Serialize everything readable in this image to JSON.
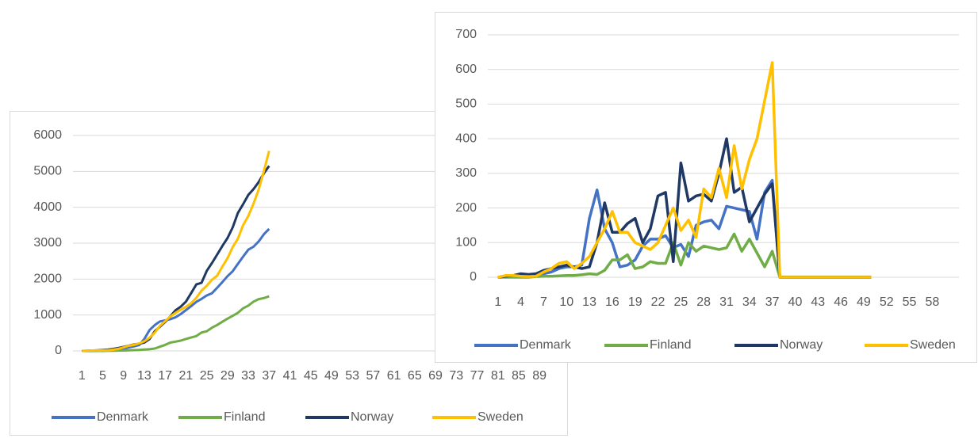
{
  "chart_data": [
    {
      "type": "line",
      "categories": [
        "1",
        null,
        null,
        null,
        "5",
        null,
        null,
        null,
        "9",
        null,
        null,
        null,
        "13",
        null,
        null,
        null,
        "17",
        null,
        null,
        null,
        "21",
        null,
        null,
        null,
        "25",
        null,
        null,
        null,
        "29",
        null,
        null,
        null,
        "33",
        null,
        null,
        null,
        "37",
        null,
        null,
        null,
        "41",
        null,
        null,
        null,
        "45",
        null,
        null,
        null,
        "49",
        null,
        null,
        null,
        "53",
        null,
        null,
        null,
        "57",
        null,
        null,
        null,
        "61",
        null,
        null,
        null,
        "65",
        null,
        null,
        null,
        "69",
        null,
        null,
        null,
        "73",
        null,
        null,
        null,
        "77",
        null,
        null,
        null,
        "81",
        null,
        null,
        null,
        "85",
        null,
        null,
        null,
        "89",
        null
      ],
      "series": [
        {
          "name": "Denmark",
          "color": "#4472c4",
          "values": [
            0,
            2,
            5,
            8,
            10,
            15,
            25,
            40,
            65,
            95,
            125,
            160,
            330,
            580,
            720,
            820,
            850,
            885,
            935,
            1025,
            1135,
            1245,
            1365,
            1450,
            1545,
            1605,
            1755,
            1915,
            2080,
            2220,
            2425,
            2625,
            2820,
            2900,
            3050,
            3250,
            3400,
            null,
            null,
            null,
            null,
            null,
            null,
            null,
            null,
            null,
            null,
            null,
            null,
            null,
            null,
            null,
            null,
            null,
            null,
            null,
            null,
            null,
            null,
            null,
            null,
            null,
            null,
            null,
            null,
            null,
            null,
            null,
            null,
            null,
            null,
            null,
            null,
            null,
            null,
            null,
            null,
            null,
            null,
            null,
            null,
            null,
            null,
            null,
            null,
            null,
            null,
            null,
            null,
            null
          ]
        },
        {
          "name": "Finland",
          "color": "#70ad47",
          "values": [
            0,
            0,
            0,
            0,
            0,
            2,
            5,
            8,
            12,
            17,
            22,
            29,
            39,
            47,
            67,
            117,
            167,
            232,
            257,
            287,
            332,
            372,
            412,
            512,
            547,
            647,
            722,
            812,
            897,
            977,
            1062,
            1187,
            1262,
            1372,
            1442,
            1472,
            1520,
            null,
            null,
            null,
            null,
            null,
            null,
            null,
            null,
            null,
            null,
            null,
            null,
            null,
            null,
            null,
            null,
            null,
            null,
            null,
            null,
            null,
            null,
            null,
            null,
            null,
            null,
            null,
            null,
            null,
            null,
            null,
            null,
            null,
            null,
            null,
            null,
            null,
            null,
            null,
            null,
            null,
            null,
            null,
            null,
            null,
            null,
            null,
            null,
            null,
            null,
            null,
            null,
            null
          ]
        },
        {
          "name": "Norway",
          "color": "#203864",
          "values": [
            0,
            3,
            8,
            18,
            26,
            36,
            56,
            81,
            111,
            146,
            176,
            201,
            231,
            331,
            546,
            676,
            806,
            961,
            1131,
            1231,
            1371,
            1606,
            1851,
            1896,
            2226,
            2446,
            2681,
            2921,
            3141,
            3441,
            3841,
            4086,
            4346,
            4506,
            4706,
            4946,
            5150,
            null,
            null,
            null,
            null,
            null,
            null,
            null,
            null,
            null,
            null,
            null,
            null,
            null,
            null,
            null,
            null,
            null,
            null,
            null,
            null,
            null,
            null,
            null,
            null,
            null,
            null,
            null,
            null,
            null,
            null,
            null,
            null,
            null,
            null,
            null,
            null,
            null,
            null,
            null,
            null,
            null,
            null,
            null,
            null,
            null,
            null,
            null,
            null,
            null,
            null,
            null,
            null,
            null
          ]
        },
        {
          "name": "Sweden",
          "color": "#ffc000",
          "values": [
            0,
            5,
            10,
            13,
            15,
            18,
            33,
            58,
            98,
            143,
            168,
            208,
            268,
            368,
            508,
            698,
            828,
            958,
            1058,
            1148,
            1228,
            1328,
            1478,
            1678,
            1813,
            1978,
            2093,
            2348,
            2578,
            2893,
            3123,
            3503,
            3758,
            4098,
            4498,
            5008,
            5570,
            null,
            null,
            null,
            null,
            null,
            null,
            null,
            null,
            null,
            null,
            null,
            null,
            null,
            null,
            null,
            null,
            null,
            null,
            null,
            null,
            null,
            null,
            null,
            null,
            null,
            null,
            null,
            null,
            null,
            null,
            null,
            null,
            null,
            null,
            null,
            null,
            null,
            null,
            null,
            null,
            null,
            null,
            null,
            null,
            null,
            null,
            null,
            null,
            null,
            null,
            null,
            null,
            null
          ]
        }
      ],
      "ylim": [
        0,
        6000
      ],
      "yticks": [
        0,
        1000,
        2000,
        3000,
        4000,
        5000,
        6000
      ],
      "grid": true,
      "legend": "bottom"
    },
    {
      "type": "line",
      "categories": [
        "1",
        null,
        null,
        "4",
        null,
        null,
        "7",
        null,
        null,
        "10",
        null,
        null,
        "13",
        null,
        null,
        "16",
        null,
        null,
        "19",
        null,
        null,
        "22",
        null,
        null,
        "25",
        null,
        null,
        "28",
        null,
        null,
        "31",
        null,
        null,
        "34",
        null,
        null,
        "37",
        null,
        null,
        "40",
        null,
        null,
        "43",
        null,
        null,
        "46",
        null,
        null,
        "49",
        null,
        null,
        "52",
        null,
        null,
        "55",
        null,
        null,
        "58",
        null,
        null,
        null
      ],
      "series": [
        {
          "name": "Denmark",
          "color": "#4472c4",
          "values": [
            0,
            2,
            3,
            3,
            2,
            5,
            10,
            15,
            25,
            30,
            30,
            35,
            170,
            252,
            140,
            100,
            30,
            35,
            50,
            90,
            110,
            110,
            120,
            85,
            95,
            60,
            150,
            160,
            165,
            140,
            205,
            200,
            195,
            190,
            110,
            245,
            280,
            0,
            0,
            0,
            0,
            0,
            0,
            0,
            0,
            0,
            0,
            0,
            0,
            0,
            null,
            null,
            null,
            null,
            null,
            null,
            null,
            null,
            null,
            null,
            null
          ]
        },
        {
          "name": "Finland",
          "color": "#70ad47",
          "values": [
            0,
            0,
            0,
            0,
            0,
            2,
            3,
            3,
            4,
            5,
            5,
            7,
            10,
            8,
            20,
            50,
            50,
            65,
            25,
            30,
            45,
            40,
            40,
            100,
            35,
            100,
            75,
            90,
            85,
            80,
            85,
            125,
            75,
            110,
            70,
            30,
            75,
            0,
            0,
            0,
            0,
            0,
            0,
            0,
            0,
            0,
            0,
            0,
            0,
            0,
            null,
            null,
            null,
            null,
            null,
            null,
            null,
            null,
            null,
            null,
            null
          ]
        },
        {
          "name": "Norway",
          "color": "#203864",
          "values": [
            0,
            3,
            5,
            10,
            8,
            10,
            20,
            25,
            30,
            35,
            30,
            25,
            30,
            100,
            215,
            130,
            130,
            155,
            170,
            100,
            140,
            235,
            245,
            45,
            330,
            220,
            235,
            240,
            220,
            300,
            400,
            245,
            260,
            160,
            200,
            240,
            270,
            0,
            0,
            0,
            0,
            0,
            0,
            0,
            0,
            0,
            0,
            0,
            0,
            0,
            null,
            null,
            null,
            null,
            null,
            null,
            null,
            null,
            null,
            null,
            null
          ]
        },
        {
          "name": "Sweden",
          "color": "#ffc000",
          "values": [
            0,
            5,
            5,
            3,
            2,
            3,
            15,
            25,
            40,
            45,
            25,
            40,
            60,
            100,
            140,
            190,
            130,
            130,
            100,
            90,
            80,
            100,
            150,
            200,
            135,
            165,
            115,
            255,
            230,
            315,
            230,
            380,
            255,
            340,
            400,
            510,
            620,
            0,
            0,
            0,
            0,
            0,
            0,
            0,
            0,
            0,
            0,
            0,
            0,
            0,
            null,
            null,
            null,
            null,
            null,
            null,
            null,
            null,
            null,
            null,
            null
          ]
        }
      ],
      "ylim": [
        0,
        700
      ],
      "yticks": [
        0,
        100,
        200,
        300,
        400,
        500,
        600,
        700
      ],
      "grid": true,
      "legend": "bottom"
    }
  ]
}
